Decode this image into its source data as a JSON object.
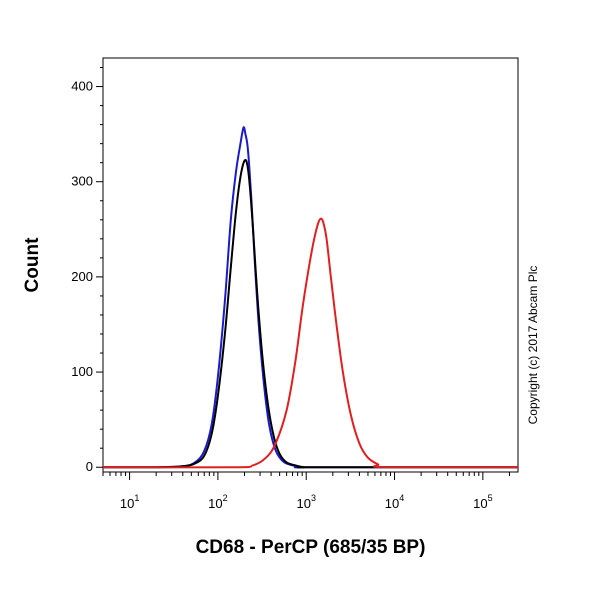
{
  "chart_data": {
    "type": "line",
    "title": "",
    "xlabel": "CD68 - PerCP (685/35 BP)",
    "ylabel": "Count",
    "x_scale": "log",
    "xlim": [
      5,
      250000
    ],
    "ylim": [
      -5,
      430
    ],
    "x_ticks": [
      {
        "value": 10,
        "base": "10",
        "exp": "1"
      },
      {
        "value": 100,
        "base": "10",
        "exp": "2"
      },
      {
        "value": 1000,
        "base": "10",
        "exp": "3"
      },
      {
        "value": 10000,
        "base": "10",
        "exp": "4"
      },
      {
        "value": 100000,
        "base": "10",
        "exp": "5"
      }
    ],
    "y_ticks": [
      {
        "value": 0,
        "label": "0"
      },
      {
        "value": 100,
        "label": "100"
      },
      {
        "value": 200,
        "label": "200"
      },
      {
        "value": 300,
        "label": "300"
      },
      {
        "value": 400,
        "label": "400"
      }
    ],
    "grid": false,
    "legend": "none",
    "annotation": "Copyright (c) 2017 Abcam Plc",
    "series": [
      {
        "color": "#1a1acc",
        "x": [
          5,
          20,
          40,
          55,
          70,
          85,
          100,
          120,
          140,
          160,
          180,
          195,
          205,
          215,
          225,
          240,
          260,
          290,
          330,
          380,
          450,
          550,
          700,
          900,
          1200,
          250000
        ],
        "y": [
          0,
          0,
          1,
          5,
          17,
          45,
          95,
          175,
          260,
          310,
          340,
          357,
          350,
          340,
          320,
          280,
          220,
          150,
          90,
          45,
          18,
          6,
          2,
          0,
          0,
          0
        ]
      },
      {
        "color": "#000000",
        "x": [
          5,
          20,
          40,
          55,
          70,
          85,
          100,
          120,
          140,
          160,
          180,
          200,
          215,
          230,
          250,
          280,
          320,
          370,
          430,
          500,
          600,
          750,
          950,
          1300,
          250000
        ],
        "y": [
          0,
          0,
          1,
          4,
          12,
          35,
          75,
          140,
          210,
          268,
          305,
          322,
          318,
          295,
          250,
          180,
          115,
          65,
          32,
          14,
          5,
          2,
          0,
          0,
          0
        ]
      },
      {
        "color": "#e02020",
        "x": [
          5,
          150,
          250,
          350,
          450,
          600,
          750,
          900,
          1050,
          1200,
          1350,
          1450,
          1550,
          1700,
          1900,
          2200,
          2600,
          3200,
          4000,
          5000,
          6500,
          8000,
          250000
        ],
        "y": [
          0,
          0,
          2,
          10,
          25,
          60,
          110,
          165,
          205,
          235,
          255,
          261,
          258,
          240,
          200,
          150,
          100,
          55,
          25,
          10,
          3,
          0,
          0
        ]
      }
    ]
  }
}
